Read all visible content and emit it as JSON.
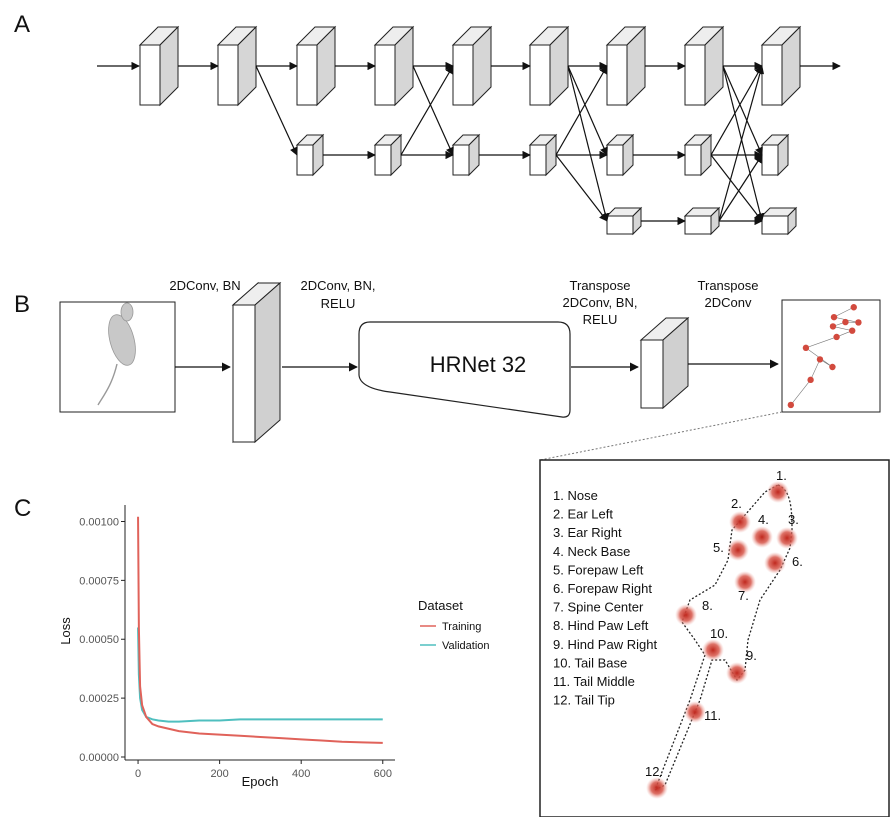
{
  "panels": {
    "a": "A",
    "b": "B",
    "c": "C"
  },
  "pipeline": {
    "steps": [
      {
        "label_lines": [
          "2DConv, BN"
        ]
      },
      {
        "label_lines": [
          "2DConv, BN,",
          "RELU"
        ]
      },
      {
        "label_lines": [
          "Transpose",
          "2DConv, BN,",
          "RELU"
        ]
      },
      {
        "label_lines": [
          "Transpose",
          "2DConv"
        ]
      }
    ],
    "hrnet": "HRNet 32"
  },
  "keypoints": {
    "legend": [
      "1. Nose",
      "2. Ear Left",
      "3. Ear Right",
      "4. Neck Base",
      "5. Forepaw Left",
      "6. Forepaw Right",
      "7. Spine Center",
      "8. Hind Paw Left",
      "9. Hind Paw Right",
      "10. Tail Base",
      "11. Tail Middle",
      "12. Tail Tip"
    ],
    "markers": [
      "1.",
      "2.",
      "3.",
      "4.",
      "5.",
      "6.",
      "7.",
      "8.",
      "9.",
      "10.",
      "11.",
      "12."
    ]
  },
  "chart_data": {
    "type": "line",
    "xlabel": "Epoch",
    "ylabel": "Loss",
    "legend_title": "Dataset",
    "legend": "right",
    "x": [
      0,
      2,
      5,
      10,
      20,
      35,
      50,
      75,
      100,
      150,
      200,
      250,
      300,
      350,
      400,
      450,
      500,
      550,
      600
    ],
    "series": [
      {
        "name": "Training",
        "color": "#e0625a",
        "values": [
          0.00102,
          0.00055,
          0.0003,
          0.00022,
          0.00017,
          0.00014,
          0.00013,
          0.00012,
          0.00011,
          0.0001,
          9.5e-05,
          9e-05,
          8.5e-05,
          8e-05,
          7.5e-05,
          7e-05,
          6.5e-05,
          6.2e-05,
          6e-05
        ]
      },
      {
        "name": "Validation",
        "color": "#4fbfbf",
        "values": [
          0.00055,
          0.00035,
          0.00025,
          0.0002,
          0.00017,
          0.00016,
          0.000155,
          0.00015,
          0.00015,
          0.000155,
          0.000155,
          0.00016,
          0.00016,
          0.00016,
          0.00016,
          0.00016,
          0.00016,
          0.00016,
          0.00016
        ]
      }
    ],
    "xlim": [
      -32,
      630
    ],
    "xticks": [
      0,
      200,
      400,
      600
    ],
    "ylim": [
      0,
      0.00107
    ],
    "yticks": [
      {
        "value": 0,
        "label": "0.00000"
      },
      {
        "value": 0.00025,
        "label": "0.00025"
      },
      {
        "value": 0.0005,
        "label": "0.00050"
      },
      {
        "value": 0.00075,
        "label": "0.00075"
      },
      {
        "value": 0.001,
        "label": "0.00100"
      }
    ]
  }
}
